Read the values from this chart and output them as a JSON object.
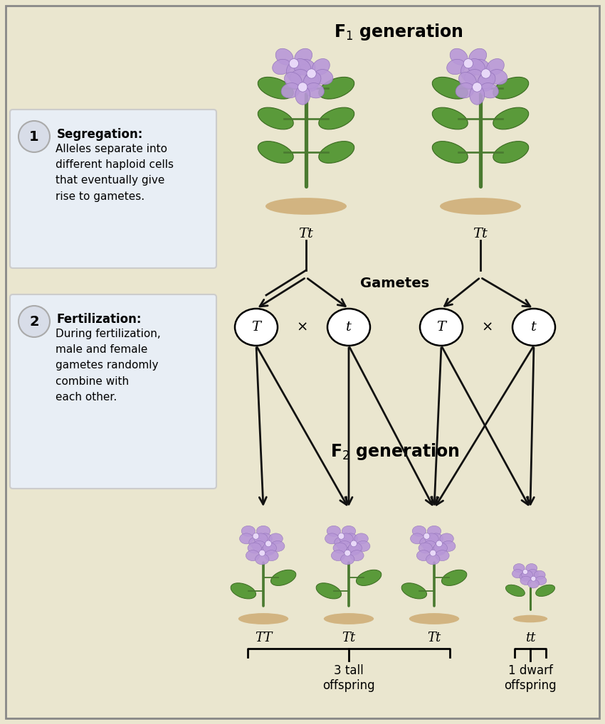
{
  "bg_color": "#EAE6CF",
  "panel_color": "#E8EEF5",
  "title_f1": "F$_1$ generation",
  "title_f2": "F$_2$ generation",
  "gametes_label": "Gametes",
  "seg_title": "Segregation:",
  "seg_text": "Alleles separate into\ndifferent haploid cells\nthat eventually give\nrise to gametes.",
  "fert_title": "Fertilization:",
  "fert_text": "During fertilization,\nmale and female\ngametes randomly\ncombine with\neach other.",
  "step1": "1",
  "step2": "2",
  "f1_labels": [
    "Tt",
    "Tt"
  ],
  "gamete_labels": [
    "T",
    "t",
    "T",
    "t"
  ],
  "f2_genotypes": [
    "TT",
    "Tt",
    "Tt",
    "tt"
  ],
  "f2_tall_label": "3 tall\noffspring",
  "f2_dwarf_label": "1 dwarf\noffspring",
  "border_color": "#888888",
  "circle_bg": "#d8dde8",
  "arrow_color": "#111111",
  "stem_color": "#4a7a30",
  "leaf_color": "#5a9a3a",
  "leaf_edge": "#3a6a20",
  "petal_color": "#b898d8",
  "petal_edge": "#9070b8",
  "ground_color": "#7a5010",
  "soil_color": "#c8a060"
}
